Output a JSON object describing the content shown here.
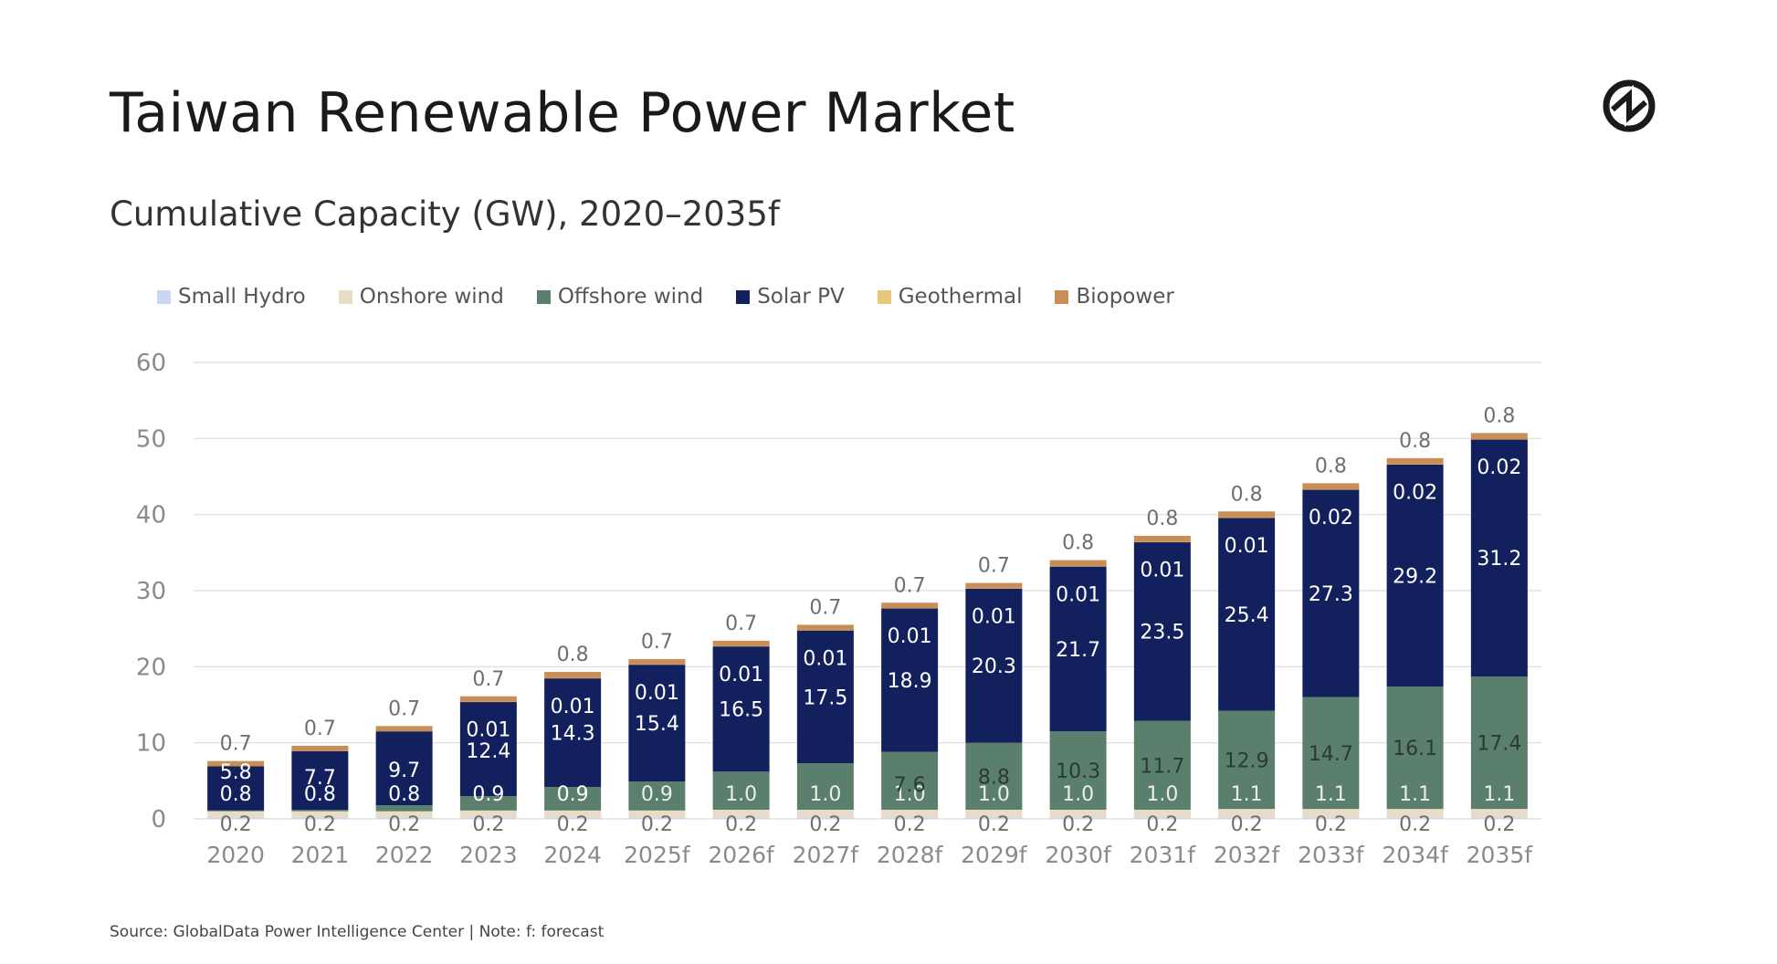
{
  "page": {
    "title": "Taiwan Renewable Power Market",
    "subtitle": "Cumulative Capacity (GW), 2020–2035f",
    "source": "Source: GlobalData Power Intelligence Center | Note: f: forecast",
    "logo_icon": "globaldata-logo-icon"
  },
  "legend": [
    {
      "name": "Small Hydro",
      "color": "#c9d6f5"
    },
    {
      "name": "Onshore wind",
      "color": "#e8dcc6"
    },
    {
      "name": "Offshore wind",
      "color": "#5a7f6c"
    },
    {
      "name": "Solar PV",
      "color": "#12205e"
    },
    {
      "name": "Geothermal",
      "color": "#e8c878"
    },
    {
      "name": "Biopower",
      "color": "#c98e57"
    }
  ],
  "chart_data": {
    "type": "bar",
    "stacked": true,
    "title": "Cumulative Capacity (GW), 2020–2035f",
    "xlabel": "",
    "ylabel": "",
    "ylim": [
      0,
      60
    ],
    "yticks": [
      0,
      10,
      20,
      30,
      40,
      50,
      60
    ],
    "grid": true,
    "legend_position": "top-left",
    "categories": [
      "2020",
      "2021",
      "2022",
      "2023",
      "2024",
      "2025f",
      "2026f",
      "2027f",
      "2028f",
      "2029f",
      "2030f",
      "2031f",
      "2032f",
      "2033f",
      "2034f",
      "2035f"
    ],
    "series": [
      {
        "name": "Small Hydro",
        "color": "#c9d6f5",
        "values": [
          0.2,
          0.2,
          0.2,
          0.2,
          0.2,
          0.2,
          0.2,
          0.2,
          0.2,
          0.2,
          0.2,
          0.2,
          0.2,
          0.2,
          0.2,
          0.2
        ]
      },
      {
        "name": "Onshore wind",
        "color": "#e8dcc6",
        "values": [
          0.8,
          0.8,
          0.8,
          0.9,
          0.9,
          0.9,
          1.0,
          1.0,
          1.0,
          1.0,
          1.0,
          1.0,
          1.1,
          1.1,
          1.1,
          1.1
        ]
      },
      {
        "name": "Offshore wind",
        "color": "#5a7f6c",
        "values": [
          0.1,
          0.2,
          0.8,
          1.9,
          3.1,
          3.8,
          5.0,
          6.1,
          7.6,
          8.8,
          10.3,
          11.7,
          12.9,
          14.7,
          16.1,
          17.4
        ]
      },
      {
        "name": "Solar PV",
        "color": "#12205e",
        "values": [
          5.8,
          7.7,
          9.7,
          12.4,
          14.3,
          15.4,
          16.5,
          17.5,
          18.9,
          20.3,
          21.7,
          23.5,
          25.4,
          27.3,
          29.2,
          31.2
        ]
      },
      {
        "name": "Geothermal",
        "color": "#e8c878",
        "values": [
          0.0,
          0.0,
          0.0,
          0.01,
          0.01,
          0.01,
          0.01,
          0.01,
          0.01,
          0.01,
          0.01,
          0.01,
          0.01,
          0.02,
          0.02,
          0.02
        ]
      },
      {
        "name": "Biopower",
        "color": "#c98e57",
        "values": [
          0.7,
          0.7,
          0.7,
          0.7,
          0.8,
          0.7,
          0.7,
          0.7,
          0.7,
          0.7,
          0.8,
          0.8,
          0.8,
          0.8,
          0.8,
          0.8
        ]
      }
    ],
    "data_labels": {
      "Small Hydro": [
        "0.2",
        "0.2",
        "0.2",
        "0.2",
        "0.2",
        "0.2",
        "0.2",
        "0.2",
        "0.2",
        "0.2",
        "0.2",
        "0.2",
        "0.2",
        "0.2",
        "0.2",
        "0.2"
      ],
      "Onshore wind": [
        "0.8",
        "0.8",
        "0.8",
        "0.9",
        "0.9",
        "0.9",
        "1.0",
        "1.0",
        "1.0",
        "1.0",
        "1.0",
        "1.0",
        "1.1",
        "1.1",
        "1.1",
        "1.1"
      ],
      "Offshore wind": [
        "",
        "",
        "",
        "",
        "",
        "",
        "",
        "",
        "7.6",
        "8.8",
        "10.3",
        "11.7",
        "12.9",
        "14.7",
        "16.1",
        "17.4"
      ],
      "Solar PV": [
        "5.8",
        "7.7",
        "9.7",
        "12.4",
        "14.3",
        "15.4",
        "16.5",
        "17.5",
        "18.9",
        "20.3",
        "21.7",
        "23.5",
        "25.4",
        "27.3",
        "29.2",
        "31.2"
      ],
      "Geothermal": [
        "",
        "",
        "",
        "0.01",
        "0.01",
        "0.01",
        "0.01",
        "0.01",
        "0.01",
        "0.01",
        "0.01",
        "0.01",
        "0.01",
        "0.02",
        "0.02",
        "0.02"
      ],
      "Biopower": [
        "0.7",
        "0.7",
        "0.7",
        "0.7",
        "0.8",
        "0.7",
        "0.7",
        "0.7",
        "0.7",
        "0.7",
        "0.8",
        "0.8",
        "0.8",
        "0.8",
        "0.8",
        "0.8"
      ]
    }
  }
}
